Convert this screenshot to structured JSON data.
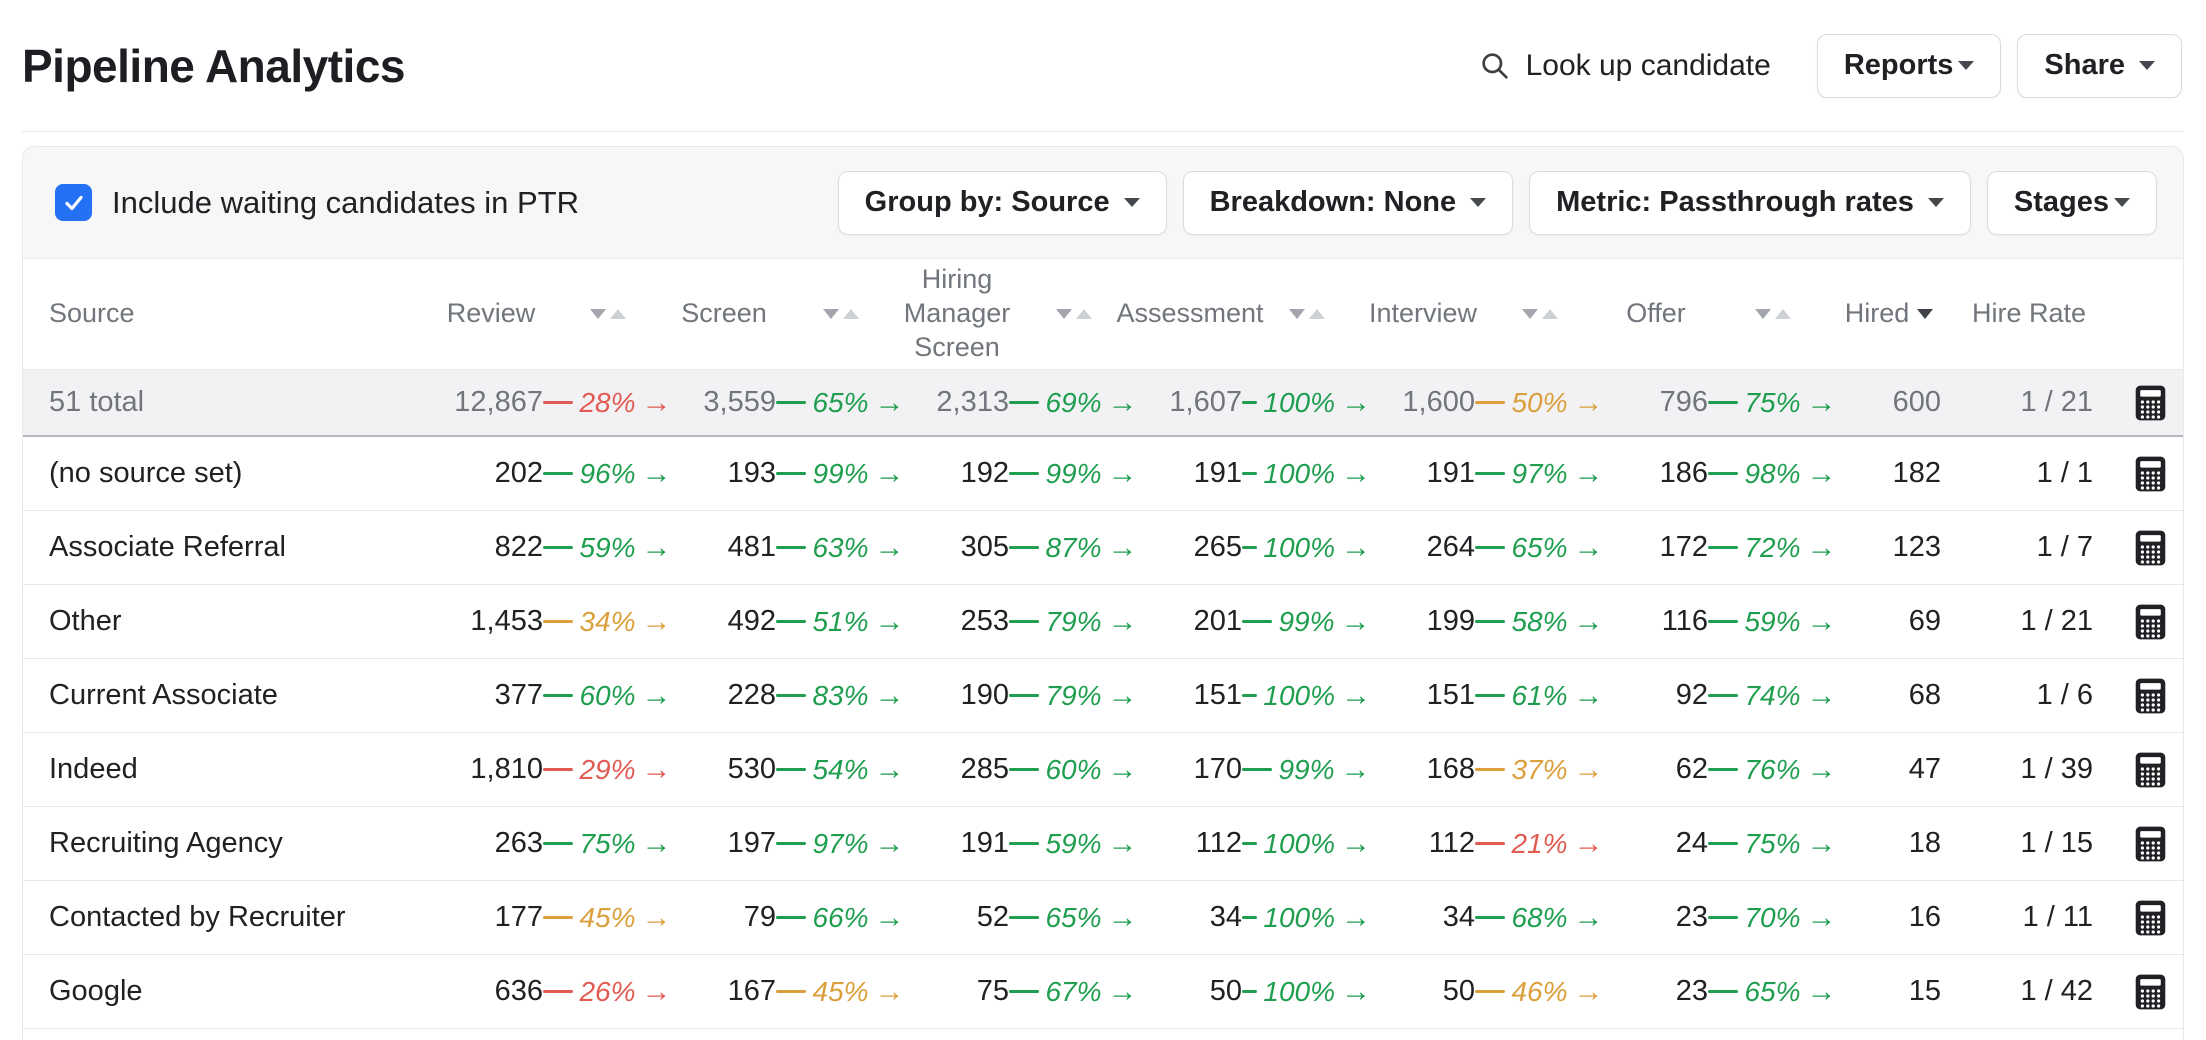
{
  "header": {
    "title": "Pipeline Analytics",
    "search_label": "Look up candidate",
    "reports_label": "Reports",
    "share_label": "Share"
  },
  "filters": {
    "checkbox_label": "Include waiting candidates in PTR",
    "checkbox_checked": true,
    "group_by_label": "Group by: Source",
    "breakdown_label": "Breakdown: None",
    "metric_label": "Metric: Passthrough rates",
    "stages_label": "Stages"
  },
  "icons": {
    "search": "magnifier",
    "dropdown": "caret-down",
    "sort_inactive": "down-up-triangles",
    "sort_active": "down-triangle",
    "row_action": "calculator",
    "checkbox": "blue-check"
  },
  "colors": {
    "green": "#1e9e4e",
    "red": "#e15b52",
    "orange": "#db9f3b",
    "blue": "#2471f5",
    "header_gray": "#71767c",
    "summary_bg": "#f2f2f4",
    "filter_bg": "#f7f7f8"
  },
  "table": {
    "columns": [
      "Source",
      "Review",
      "Screen",
      "Hiring Manager Screen",
      "Assessment",
      "Interview",
      "Offer",
      "Hired",
      "Hire Rate"
    ],
    "sorted_column": "Hired",
    "sort_direction": "desc",
    "summary": {
      "label": "51 total",
      "values": [
        "12,867",
        "3,559",
        "2,313",
        "1,607",
        "1,600",
        "796",
        "600"
      ],
      "rates": [
        {
          "pct": "28%",
          "tone": "red"
        },
        {
          "pct": "65%",
          "tone": "green"
        },
        {
          "pct": "69%",
          "tone": "green"
        },
        {
          "pct": "100%",
          "tone": "green"
        },
        {
          "pct": "50%",
          "tone": "orange"
        },
        {
          "pct": "75%",
          "tone": "green"
        }
      ],
      "hire_rate": "1 / 21"
    },
    "rows": [
      {
        "source": "(no source set)",
        "values": [
          "202",
          "193",
          "192",
          "191",
          "191",
          "186",
          "182"
        ],
        "rates": [
          {
            "pct": "96%",
            "tone": "green"
          },
          {
            "pct": "99%",
            "tone": "green"
          },
          {
            "pct": "99%",
            "tone": "green"
          },
          {
            "pct": "100%",
            "tone": "green"
          },
          {
            "pct": "97%",
            "tone": "green"
          },
          {
            "pct": "98%",
            "tone": "green"
          }
        ],
        "hire_rate": "1 / 1"
      },
      {
        "source": "Associate Referral",
        "values": [
          "822",
          "481",
          "305",
          "265",
          "264",
          "172",
          "123"
        ],
        "rates": [
          {
            "pct": "59%",
            "tone": "green"
          },
          {
            "pct": "63%",
            "tone": "green"
          },
          {
            "pct": "87%",
            "tone": "green"
          },
          {
            "pct": "100%",
            "tone": "green"
          },
          {
            "pct": "65%",
            "tone": "green"
          },
          {
            "pct": "72%",
            "tone": "green"
          }
        ],
        "hire_rate": "1 / 7"
      },
      {
        "source": "Other",
        "values": [
          "1,453",
          "492",
          "253",
          "201",
          "199",
          "116",
          "69"
        ],
        "rates": [
          {
            "pct": "34%",
            "tone": "orange"
          },
          {
            "pct": "51%",
            "tone": "green"
          },
          {
            "pct": "79%",
            "tone": "green"
          },
          {
            "pct": "99%",
            "tone": "green"
          },
          {
            "pct": "58%",
            "tone": "green"
          },
          {
            "pct": "59%",
            "tone": "green"
          }
        ],
        "hire_rate": "1 / 21"
      },
      {
        "source": "Current Associate",
        "values": [
          "377",
          "228",
          "190",
          "151",
          "151",
          "92",
          "68"
        ],
        "rates": [
          {
            "pct": "60%",
            "tone": "green"
          },
          {
            "pct": "83%",
            "tone": "green"
          },
          {
            "pct": "79%",
            "tone": "green"
          },
          {
            "pct": "100%",
            "tone": "green"
          },
          {
            "pct": "61%",
            "tone": "green"
          },
          {
            "pct": "74%",
            "tone": "green"
          }
        ],
        "hire_rate": "1 / 6"
      },
      {
        "source": "Indeed",
        "values": [
          "1,810",
          "530",
          "285",
          "170",
          "168",
          "62",
          "47"
        ],
        "rates": [
          {
            "pct": "29%",
            "tone": "red"
          },
          {
            "pct": "54%",
            "tone": "green"
          },
          {
            "pct": "60%",
            "tone": "green"
          },
          {
            "pct": "99%",
            "tone": "green"
          },
          {
            "pct": "37%",
            "tone": "orange"
          },
          {
            "pct": "76%",
            "tone": "green"
          }
        ],
        "hire_rate": "1 / 39"
      },
      {
        "source": "Recruiting Agency",
        "values": [
          "263",
          "197",
          "191",
          "112",
          "112",
          "24",
          "18"
        ],
        "rates": [
          {
            "pct": "75%",
            "tone": "green"
          },
          {
            "pct": "97%",
            "tone": "green"
          },
          {
            "pct": "59%",
            "tone": "green"
          },
          {
            "pct": "100%",
            "tone": "green"
          },
          {
            "pct": "21%",
            "tone": "red"
          },
          {
            "pct": "75%",
            "tone": "green"
          }
        ],
        "hire_rate": "1 / 15"
      },
      {
        "source": "Contacted by Recruiter",
        "values": [
          "177",
          "79",
          "52",
          "34",
          "34",
          "23",
          "16"
        ],
        "rates": [
          {
            "pct": "45%",
            "tone": "orange"
          },
          {
            "pct": "66%",
            "tone": "green"
          },
          {
            "pct": "65%",
            "tone": "green"
          },
          {
            "pct": "100%",
            "tone": "green"
          },
          {
            "pct": "68%",
            "tone": "green"
          },
          {
            "pct": "70%",
            "tone": "green"
          }
        ],
        "hire_rate": "1 / 11"
      },
      {
        "source": "Google",
        "values": [
          "636",
          "167",
          "75",
          "50",
          "50",
          "23",
          "15"
        ],
        "rates": [
          {
            "pct": "26%",
            "tone": "red"
          },
          {
            "pct": "45%",
            "tone": "orange"
          },
          {
            "pct": "67%",
            "tone": "green"
          },
          {
            "pct": "100%",
            "tone": "green"
          },
          {
            "pct": "46%",
            "tone": "orange"
          },
          {
            "pct": "65%",
            "tone": "green"
          }
        ],
        "hire_rate": "1 / 42"
      }
    ]
  }
}
